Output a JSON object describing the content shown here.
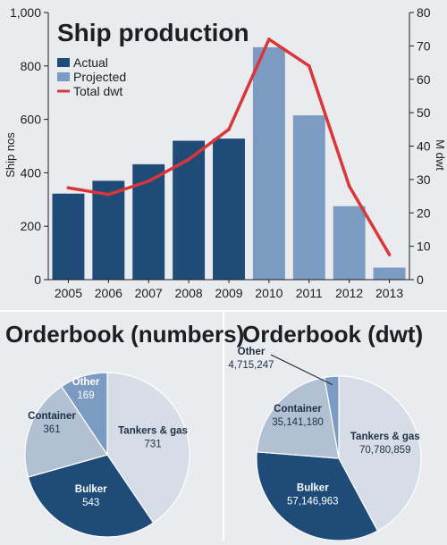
{
  "chart_data": [
    {
      "type": "bar",
      "title": "Ship production",
      "ylabel": "Ship nos",
      "y2label": "M dwt",
      "categories": [
        "2005",
        "2006",
        "2007",
        "2008",
        "2009",
        "2010",
        "2011",
        "2012",
        "2013"
      ],
      "ylim": [
        0,
        1000
      ],
      "y2lim": [
        0,
        80
      ],
      "yticks": [
        "0",
        "200",
        "400",
        "600",
        "800",
        "1,000"
      ],
      "y2ticks": [
        "0",
        "10",
        "20",
        "30",
        "40",
        "50",
        "60",
        "70",
        "80"
      ],
      "legend": [
        "Actual",
        "Projected",
        "Total dwt"
      ],
      "legend_position": "top-left",
      "grid": false,
      "series": [
        {
          "name": "Actual",
          "type": "bar",
          "axis": "left",
          "color": "#1e4b78",
          "values": [
            322,
            370,
            432,
            520,
            528,
            null,
            null,
            null,
            null
          ]
        },
        {
          "name": "Projected",
          "type": "bar",
          "axis": "left",
          "color": "#7b9bc2",
          "values": [
            null,
            null,
            null,
            null,
            null,
            870,
            615,
            275,
            45
          ]
        },
        {
          "name": "Total dwt",
          "type": "line",
          "axis": "right",
          "color": "#d9363a",
          "values": [
            27.5,
            25.5,
            29.5,
            36,
            45,
            72,
            64,
            28,
            7.5
          ]
        }
      ]
    },
    {
      "type": "pie",
      "title": "Orderbook (numbers)",
      "slices": [
        {
          "label": "Tankers & gas",
          "value": 731,
          "display": "731",
          "color": "#d7dde7",
          "text_color": "#1e2f45"
        },
        {
          "label": "Bulker",
          "value": 543,
          "display": "543",
          "color": "#1e4b78",
          "text_color": "#ffffff"
        },
        {
          "label": "Container",
          "value": 361,
          "display": "361",
          "color": "#b2c0d3",
          "text_color": "#1e2f45"
        },
        {
          "label": "Other",
          "value": 169,
          "display": "169",
          "color": "#7b9bc2",
          "text_color": "#ffffff"
        }
      ]
    },
    {
      "type": "pie",
      "title": "Orderbook (dwt)",
      "slices": [
        {
          "label": "Tankers & gas",
          "value": 70780859,
          "display": "70,780,859",
          "color": "#d7dde7",
          "text_color": "#1e2f45"
        },
        {
          "label": "Bulker",
          "value": 57146963,
          "display": "57,146,963",
          "color": "#1e4b78",
          "text_color": "#ffffff"
        },
        {
          "label": "Container",
          "value": 35141180,
          "display": "35,141,180",
          "color": "#b2c0d3",
          "text_color": "#1e2f45"
        },
        {
          "label": "Other",
          "value": 4715247,
          "display": "4,715,247",
          "color": "#7b9bc2",
          "text_color": "#1e2f45"
        }
      ]
    }
  ]
}
